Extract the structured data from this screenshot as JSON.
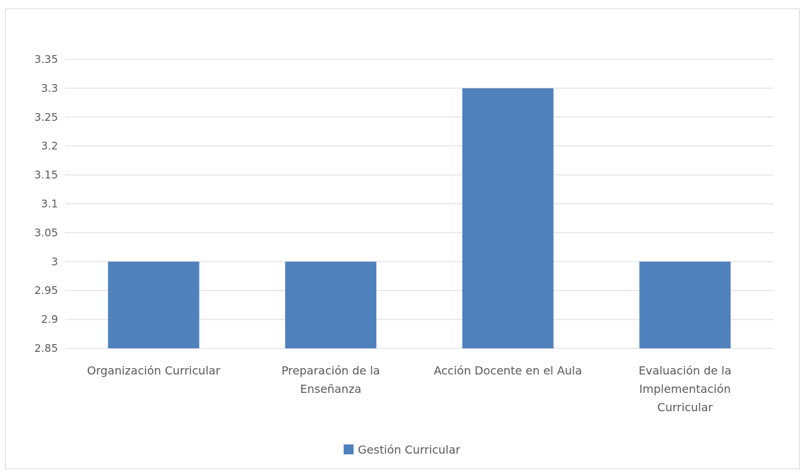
{
  "chart_data": {
    "type": "bar",
    "categories": [
      "Organización Curricular",
      "Preparación de la Enseñanza",
      "Acción Docente en el Aula",
      "Evaluación de la Implementación Curricular"
    ],
    "category_lines": [
      [
        "Organización Curricular"
      ],
      [
        "Preparación de la",
        "Enseñanza"
      ],
      [
        "Acción Docente en el Aula"
      ],
      [
        "Evaluación de la",
        "Implementación",
        "Curricular"
      ]
    ],
    "series": [
      {
        "name": "Gestión Curricular",
        "values": [
          3.0,
          3.0,
          3.3,
          3.0
        ]
      }
    ],
    "ytick_labels": [
      "2.85",
      "2.9",
      "2.95",
      "3",
      "3.05",
      "3.1",
      "3.15",
      "3.2",
      "3.25",
      "3.3",
      "3.35"
    ],
    "ylim": [
      2.85,
      3.35
    ],
    "grid": true,
    "legend_position": "bottom",
    "colors": {
      "bar": "#4f81bd",
      "grid": "#d9d9d9",
      "text": "#595959",
      "frame": "#d9d9d9"
    }
  },
  "legend": {
    "label": "Gestión Curricular"
  }
}
